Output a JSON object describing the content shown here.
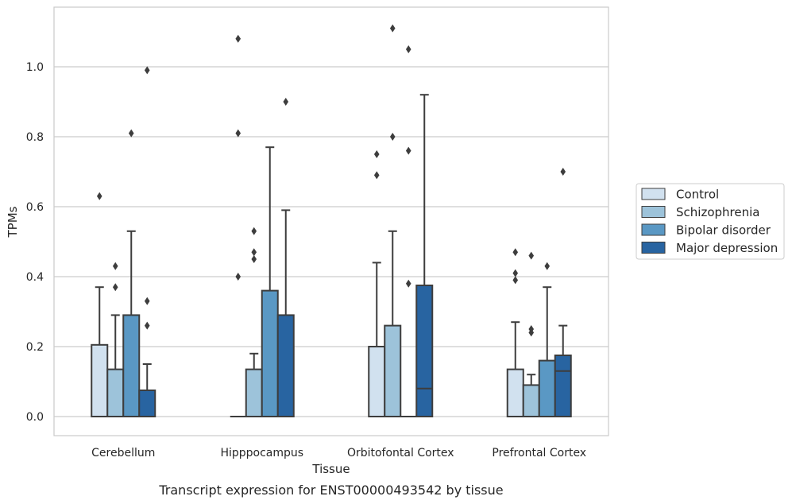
{
  "chart_data": {
    "type": "boxplot",
    "title": "",
    "caption": "Transcript expression for ENST00000493542 by tissue",
    "xlabel": "Tissue",
    "ylabel": "TPMs",
    "ylim": [
      -0.05,
      1.17
    ],
    "yticks": [
      0.0,
      0.2,
      0.4,
      0.6,
      0.8,
      1.0
    ],
    "ytick_labels": [
      "0.0",
      "0.2",
      "0.4",
      "0.6",
      "0.8",
      "1.0"
    ],
    "grid": "horizontal",
    "legend_position": "right",
    "categories": [
      "Cerebellum",
      "Hipppocampus",
      "Orbitofontal Cortex",
      "Prefrontal Cortex"
    ],
    "series": [
      {
        "name": "Control",
        "color": "#d1e1ef",
        "boxes": [
          {
            "q1": 0.0,
            "median": 0.0,
            "q3": 0.205,
            "whisker_low": 0.0,
            "whisker_high": 0.37,
            "outliers": [
              0.63
            ]
          },
          {
            "q1": 0.0,
            "median": 0.0,
            "q3": 0.0,
            "whisker_low": 0.0,
            "whisker_high": 0.0,
            "outliers": [
              0.4,
              0.81,
              1.08
            ]
          },
          {
            "q1": 0.0,
            "median": 0.0,
            "q3": 0.2,
            "whisker_low": 0.0,
            "whisker_high": 0.44,
            "outliers": [
              0.69,
              0.75
            ]
          },
          {
            "q1": 0.0,
            "median": 0.0,
            "q3": 0.135,
            "whisker_low": 0.0,
            "whisker_high": 0.27,
            "outliers": [
              0.39,
              0.41,
              0.47
            ]
          }
        ]
      },
      {
        "name": "Schizophrenia",
        "color": "#9dc3da",
        "boxes": [
          {
            "q1": 0.0,
            "median": 0.0,
            "q3": 0.135,
            "whisker_low": 0.0,
            "whisker_high": 0.29,
            "outliers": [
              0.37,
              0.43
            ]
          },
          {
            "q1": 0.0,
            "median": 0.0,
            "q3": 0.135,
            "whisker_low": 0.0,
            "whisker_high": 0.18,
            "outliers": [
              0.45,
              0.47,
              0.53
            ]
          },
          {
            "q1": 0.0,
            "median": 0.0,
            "q3": 0.26,
            "whisker_low": 0.0,
            "whisker_high": 0.53,
            "outliers": [
              0.8,
              1.11
            ]
          },
          {
            "q1": 0.0,
            "median": 0.0,
            "q3": 0.09,
            "whisker_low": 0.0,
            "whisker_high": 0.12,
            "outliers": [
              0.24,
              0.25,
              0.46
            ]
          }
        ]
      },
      {
        "name": "Bipolar disorder",
        "color": "#5a98c4",
        "boxes": [
          {
            "q1": 0.0,
            "median": 0.0,
            "q3": 0.29,
            "whisker_low": 0.0,
            "whisker_high": 0.53,
            "outliers": [
              0.81
            ]
          },
          {
            "q1": 0.0,
            "median": 0.0,
            "q3": 0.36,
            "whisker_low": 0.0,
            "whisker_high": 0.77,
            "outliers": []
          },
          {
            "q1": 0.0,
            "median": 0.0,
            "q3": 0.0,
            "whisker_low": 0.0,
            "whisker_high": 0.0,
            "outliers": [
              0.38,
              0.76,
              1.05
            ]
          },
          {
            "q1": 0.0,
            "median": 0.0,
            "q3": 0.16,
            "whisker_low": 0.0,
            "whisker_high": 0.37,
            "outliers": [
              0.43
            ]
          }
        ]
      },
      {
        "name": "Major depression",
        "color": "#2864a1",
        "boxes": [
          {
            "q1": 0.0,
            "median": 0.0,
            "q3": 0.075,
            "whisker_low": 0.0,
            "whisker_high": 0.15,
            "outliers": [
              0.26,
              0.33,
              0.99
            ]
          },
          {
            "q1": 0.0,
            "median": 0.0,
            "q3": 0.29,
            "whisker_low": 0.0,
            "whisker_high": 0.59,
            "outliers": [
              0.9
            ]
          },
          {
            "q1": 0.0,
            "median": 0.08,
            "q3": 0.375,
            "whisker_low": 0.0,
            "whisker_high": 0.92,
            "outliers": []
          },
          {
            "q1": 0.0,
            "median": 0.13,
            "q3": 0.175,
            "whisker_low": 0.0,
            "whisker_high": 0.26,
            "outliers": [
              0.7
            ]
          }
        ]
      }
    ]
  }
}
